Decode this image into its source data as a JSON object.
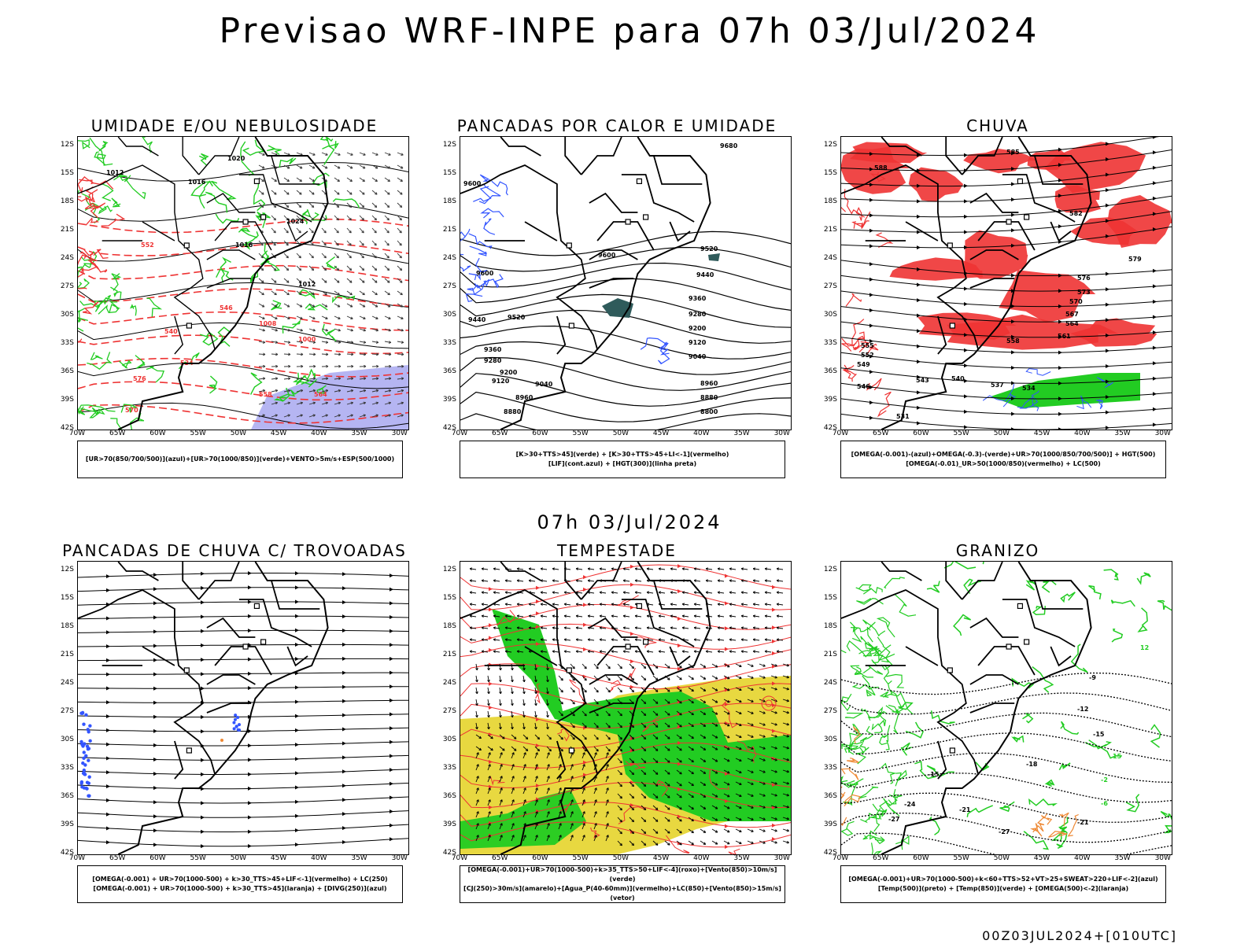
{
  "title": "Previsao WRF-INPE  para 07h 03/Jul/2024",
  "mid_title": "07h 03/Jul/2024",
  "footer": "00Z03JUL2024+[010UTC]",
  "lat_ticks": [
    "12S",
    "15S",
    "18S",
    "21S",
    "24S",
    "27S",
    "30S",
    "33S",
    "36S",
    "39S",
    "42S"
  ],
  "lon_ticks": [
    "70W",
    "65W",
    "60W",
    "55W",
    "50W",
    "45W",
    "40W",
    "35W",
    "30W"
  ],
  "colors": {
    "green": "#22cc22",
    "red": "#ee3333",
    "blue": "#3355ff",
    "lilac": "#a8a8f0",
    "yellow": "#e8d840",
    "orange": "#ee8833",
    "teal": "#2f5b5b"
  },
  "panels": [
    {
      "id": "umidade",
      "title": "UMIDADE E/OU NEBULOSIDADE",
      "legend": [
        "[UR>70(850/700/500)](azul)+[UR>70(1000/850)](verde)+VENTO>5m/s+ESP(500/1000)"
      ],
      "labels": [
        "1012",
        "1016",
        "1020",
        "1024",
        "1016",
        "1012",
        "1008",
        "1000",
        "576",
        "570",
        "564",
        "558",
        "552",
        "546",
        "540",
        "534"
      ]
    },
    {
      "id": "pancadas_calor",
      "title": "PANCADAS POR CALOR E UMIDADE",
      "legend": [
        "[K>30+TTS>45](verde) + [K>30+TTS>45+LI<-1](vermelho)",
        "[LIF](cont.azul) + [HGT(300)](linha preta)"
      ],
      "labels": [
        "9680",
        "9600",
        "9600",
        "9600",
        "9520",
        "9440",
        "9360",
        "9280",
        "9200",
        "9120",
        "9040",
        "8960",
        "8880",
        "8800",
        "9520",
        "9440",
        "9360",
        "9280",
        "9200",
        "9120",
        "9040",
        "8960",
        "8880"
      ]
    },
    {
      "id": "chuva",
      "title": "CHUVA",
      "legend": [
        "[OMEGA(-0.001)-(azul)+OMEGA(-0.3)-(verde)+UR>70(1000/850/700/500)] + HGT(500)",
        "[OMEGA(-0.01)_UR>50(1000/850)(vermelho) + LC(500)"
      ],
      "labels": [
        "588",
        "585",
        "582",
        "579",
        "576",
        "573",
        "570",
        "567",
        "564",
        "561",
        "558",
        "555",
        "552",
        "549",
        "546",
        "543",
        "540",
        "537",
        "534",
        "531"
      ]
    },
    {
      "id": "pancadas_trovoadas",
      "title": "PANCADAS DE CHUVA C/ TROVOADAS",
      "legend": [
        "[OMEGA(-0.001) + UR>70(1000-500) + k>30_TTS>45+LIF<-1](vermelho) + LC(250)",
        "[OMEGA(-0.001) + UR>70(1000-500) + k>30_TTS>45](laranja) + [DIVG(250)](azul)"
      ],
      "labels": []
    },
    {
      "id": "tempestade",
      "title": "TEMPESTADE",
      "legend": [
        "[OMEGA(-0.001)+UR>70(1000-500)+k>35_TTS>50+LIF<-4](roxo)+[Vento(850)>10m/s](verde)",
        "[CJ(250)>30m/s](amarelo)+[Agua_P(40-60mm)](vermelho)+LC(850)+[Vento(850)>15m/s](vetor)"
      ],
      "labels": []
    },
    {
      "id": "granizo",
      "title": "GRANIZO",
      "legend": [
        "[OMEGA(-0.001)+UR>70(1000-500)+k<60+TTS>52+VT>25+SWEAT>220+LIF<-2](azul)",
        "[Temp(500)](preto) + [Temp(850)](verde) + [OMEGA(500)<-2](laranja)"
      ],
      "labels": [
        "-9",
        "-12",
        "-15",
        "-15",
        "-18",
        "-21",
        "-21",
        "-24",
        "-27",
        "-27",
        "12",
        "15",
        "-2",
        "-6"
      ]
    }
  ]
}
